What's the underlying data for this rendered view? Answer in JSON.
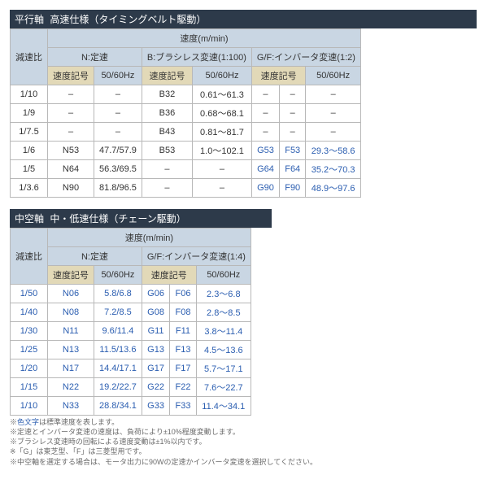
{
  "colors": {
    "title_bg": "#2d3a4a",
    "hdr1_bg": "#c9d6e3",
    "hdr2_bg": "#e2d9b8",
    "border": "#b8b8b8",
    "link_blue": "#2a5db0",
    "notes_gray": "#6a6a6a"
  },
  "table1": {
    "title_main": "平行軸",
    "title_sub": "高速仕様（タイミングベルト駆動）",
    "top_header": "速度(m/min)",
    "col_ratio": "減速比",
    "group_n": "N:定速",
    "group_b": "B:ブラシレス変速(1:100)",
    "group_gf": "G/F:インバータ変速(1:2)",
    "sub_code": "速度記号",
    "sub_hz": "50/60Hz",
    "rows": [
      {
        "ratio": "1/10",
        "n_code": "–",
        "n_hz": "–",
        "b_code": "B32",
        "b_hz": "0.61～61.3",
        "g_code": "–",
        "f_code": "–",
        "gf_hz": "–"
      },
      {
        "ratio": "1/9",
        "n_code": "–",
        "n_hz": "–",
        "b_code": "B36",
        "b_hz": "0.68～68.1",
        "g_code": "–",
        "f_code": "–",
        "gf_hz": "–"
      },
      {
        "ratio": "1/7.5",
        "n_code": "–",
        "n_hz": "–",
        "b_code": "B43",
        "b_hz": "0.81～81.7",
        "g_code": "–",
        "f_code": "–",
        "gf_hz": "–"
      },
      {
        "ratio": "1/6",
        "n_code": "N53",
        "n_hz": "47.7/57.9",
        "b_code": "B53",
        "b_hz": "1.0～102.1",
        "g_code": "G53",
        "f_code": "F53",
        "gf_hz": "29.3～58.6"
      },
      {
        "ratio": "1/5",
        "n_code": "N64",
        "n_hz": "56.3/69.5",
        "b_code": "–",
        "b_hz": "–",
        "g_code": "G64",
        "f_code": "F64",
        "gf_hz": "35.2～70.3"
      },
      {
        "ratio": "1/3.6",
        "n_code": "N90",
        "n_hz": "81.8/96.5",
        "b_code": "–",
        "b_hz": "–",
        "g_code": "G90",
        "f_code": "F90",
        "gf_hz": "48.9～97.6"
      }
    ]
  },
  "table2": {
    "title_main": "中空軸",
    "title_sub": "中・低速仕様（チェーン駆動）",
    "top_header": "速度(m/min)",
    "col_ratio": "減速比",
    "group_n": "N:定速",
    "group_gf": "G/F:インバータ変速(1:4)",
    "sub_code": "速度記号",
    "sub_hz": "50/60Hz",
    "rows": [
      {
        "ratio": "1/50",
        "n_code": "N06",
        "n_hz": "5.8/6.8",
        "g_code": "G06",
        "f_code": "F06",
        "gf_hz": "2.3～6.8"
      },
      {
        "ratio": "1/40",
        "n_code": "N08",
        "n_hz": "7.2/8.5",
        "g_code": "G08",
        "f_code": "F08",
        "gf_hz": "2.8～8.5"
      },
      {
        "ratio": "1/30",
        "n_code": "N11",
        "n_hz": "9.6/11.4",
        "g_code": "G11",
        "f_code": "F11",
        "gf_hz": "3.8～11.4"
      },
      {
        "ratio": "1/25",
        "n_code": "N13",
        "n_hz": "11.5/13.6",
        "g_code": "G13",
        "f_code": "F13",
        "gf_hz": "4.5～13.6"
      },
      {
        "ratio": "1/20",
        "n_code": "N17",
        "n_hz": "14.4/17.1",
        "g_code": "G17",
        "f_code": "F17",
        "gf_hz": "5.7～17.1"
      },
      {
        "ratio": "1/15",
        "n_code": "N22",
        "n_hz": "19.2/22.7",
        "g_code": "G22",
        "f_code": "F22",
        "gf_hz": "7.6～22.7"
      },
      {
        "ratio": "1/10",
        "n_code": "N33",
        "n_hz": "28.8/34.1",
        "g_code": "G33",
        "f_code": "F33",
        "gf_hz": "11.4～34.1"
      }
    ]
  },
  "notes": {
    "l1a": "※",
    "l1b": "色文字",
    "l1c": "は標準速度を表します。",
    "l2": "※定速とインバータ変速の速度は、負荷により±10%程度変動します。",
    "l3": "※ブラシレス変速時の回転による速度変動は±1%以内です。",
    "l4": "※「G」は東芝型、「F」は三菱型用です。",
    "l5": "※中空軸を選定する場合は、モータ出力に90Wの定速かインバータ変速を選択してください。"
  }
}
